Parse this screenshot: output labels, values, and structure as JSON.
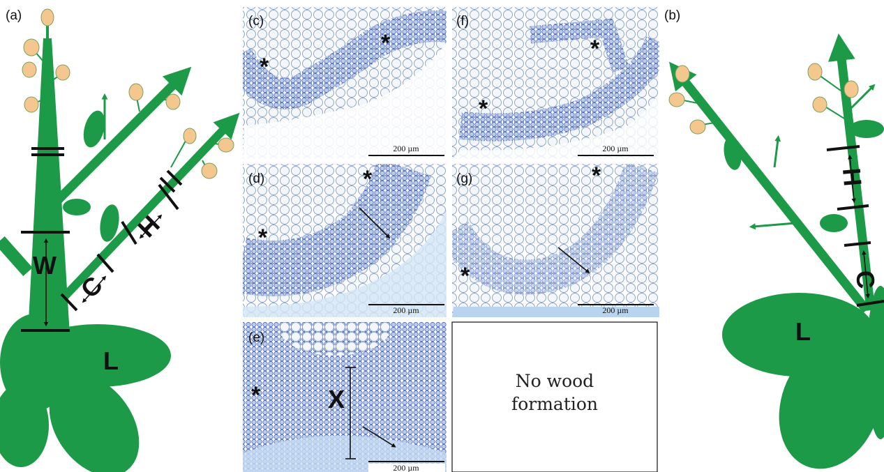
{
  "panel_a": {
    "label": "(a)",
    "marks": {
      "w": "W",
      "c": "C",
      "h": "H",
      "l": "L"
    }
  },
  "panel_b": {
    "label": "(b)",
    "marks": {
      "h": "H",
      "c": "C",
      "l": "L"
    }
  },
  "panel_c": {
    "label": "(c)",
    "asterisks": [
      "*",
      "*"
    ],
    "scale_bar": "200 µm"
  },
  "panel_d": {
    "label": "(d)",
    "asterisks": [
      "*",
      "*"
    ],
    "scale_bar": "200 µm"
  },
  "panel_e": {
    "label": "(e)",
    "asterisks": [
      "*"
    ],
    "marks": {
      "x": "X"
    },
    "scale_bar": "200 µm"
  },
  "panel_f": {
    "label": "(f)",
    "asterisks": [
      "*",
      "*"
    ],
    "scale_bar": "200 µm"
  },
  "panel_g": {
    "label": "(g)",
    "asterisks": [
      "*",
      "*"
    ],
    "scale_bar": "200 µm"
  },
  "empty_panel": {
    "text_lines": [
      "No wood",
      "formation"
    ]
  }
}
